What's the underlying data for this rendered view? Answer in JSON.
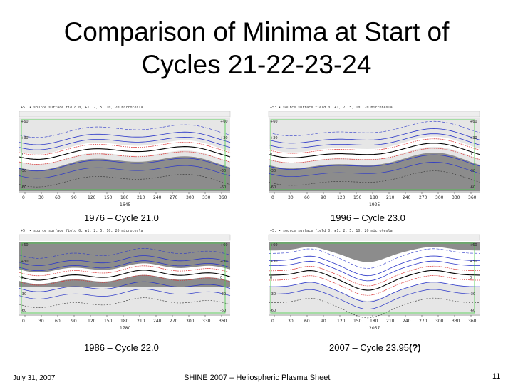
{
  "slide": {
    "title_line1": "Comparison of Minima at Start of",
    "title_line2": "Cycles 21-22-23-24",
    "footer_date": "July 31, 2007",
    "footer_center": "SHINE 2007 – Heliospheric Plasma Sheet",
    "page_number": "11"
  },
  "panels": [
    {
      "caption": "1976 – Cycle 21.0",
      "rotation": "1645",
      "kind": "a"
    },
    {
      "caption": "1996 – Cycle 23.0",
      "rotation": "1925",
      "kind": "b"
    },
    {
      "caption": "1986 – Cycle 22.0",
      "rotation": "1780",
      "kind": "c"
    },
    {
      "caption_main": "2007 – Cycle 23.95",
      "caption_bold": "(?)",
      "rotation": "2057",
      "kind": "d"
    }
  ],
  "plot_common": {
    "header": "+5: • source surface field    0, ±1, 2, 5, 10, 20 microtesla",
    "x_ticks": [
      "0",
      "30",
      "60",
      "90",
      "120",
      "150",
      "180",
      "210",
      "240",
      "270",
      "300",
      "330",
      "360"
    ],
    "y_left": [
      "+60",
      "+30",
      "0",
      "-30",
      "-60"
    ],
    "y_right": [
      "+60",
      "+30",
      "0",
      "-30",
      "-60"
    ]
  },
  "colors": {
    "dark_gray": "#8c8c8c",
    "light_gray": "#e6e6e6",
    "blue": "#2a36c8",
    "red": "#d83030",
    "green": "#44cc44"
  }
}
